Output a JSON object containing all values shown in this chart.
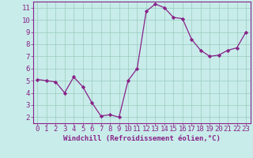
{
  "x": [
    0,
    1,
    2,
    3,
    4,
    5,
    6,
    7,
    8,
    9,
    10,
    11,
    12,
    13,
    14,
    15,
    16,
    17,
    18,
    19,
    20,
    21,
    22,
    23
  ],
  "y": [
    5.1,
    5.0,
    4.9,
    4.0,
    5.3,
    4.5,
    3.2,
    2.1,
    2.2,
    2.0,
    5.0,
    6.0,
    10.7,
    11.3,
    11.0,
    10.2,
    10.1,
    8.4,
    7.5,
    7.0,
    7.1,
    7.5,
    7.7,
    9.0
  ],
  "line_color": "#882288",
  "marker": "D",
  "marker_size": 2.2,
  "linewidth": 0.9,
  "xlabel": "Windchill (Refroidissement éolien,°C)",
  "xlim": [
    -0.5,
    23.5
  ],
  "ylim": [
    1.5,
    11.5
  ],
  "yticks": [
    2,
    3,
    4,
    5,
    6,
    7,
    8,
    9,
    10,
    11
  ],
  "xticks": [
    0,
    1,
    2,
    3,
    4,
    5,
    6,
    7,
    8,
    9,
    10,
    11,
    12,
    13,
    14,
    15,
    16,
    17,
    18,
    19,
    20,
    21,
    22,
    23
  ],
  "grid_color": "#99ccbb",
  "background_color": "#c8ecea",
  "text_color": "#882288",
  "xlabel_fontsize": 6.5,
  "tick_fontsize": 6.5,
  "spine_color": "#882288"
}
